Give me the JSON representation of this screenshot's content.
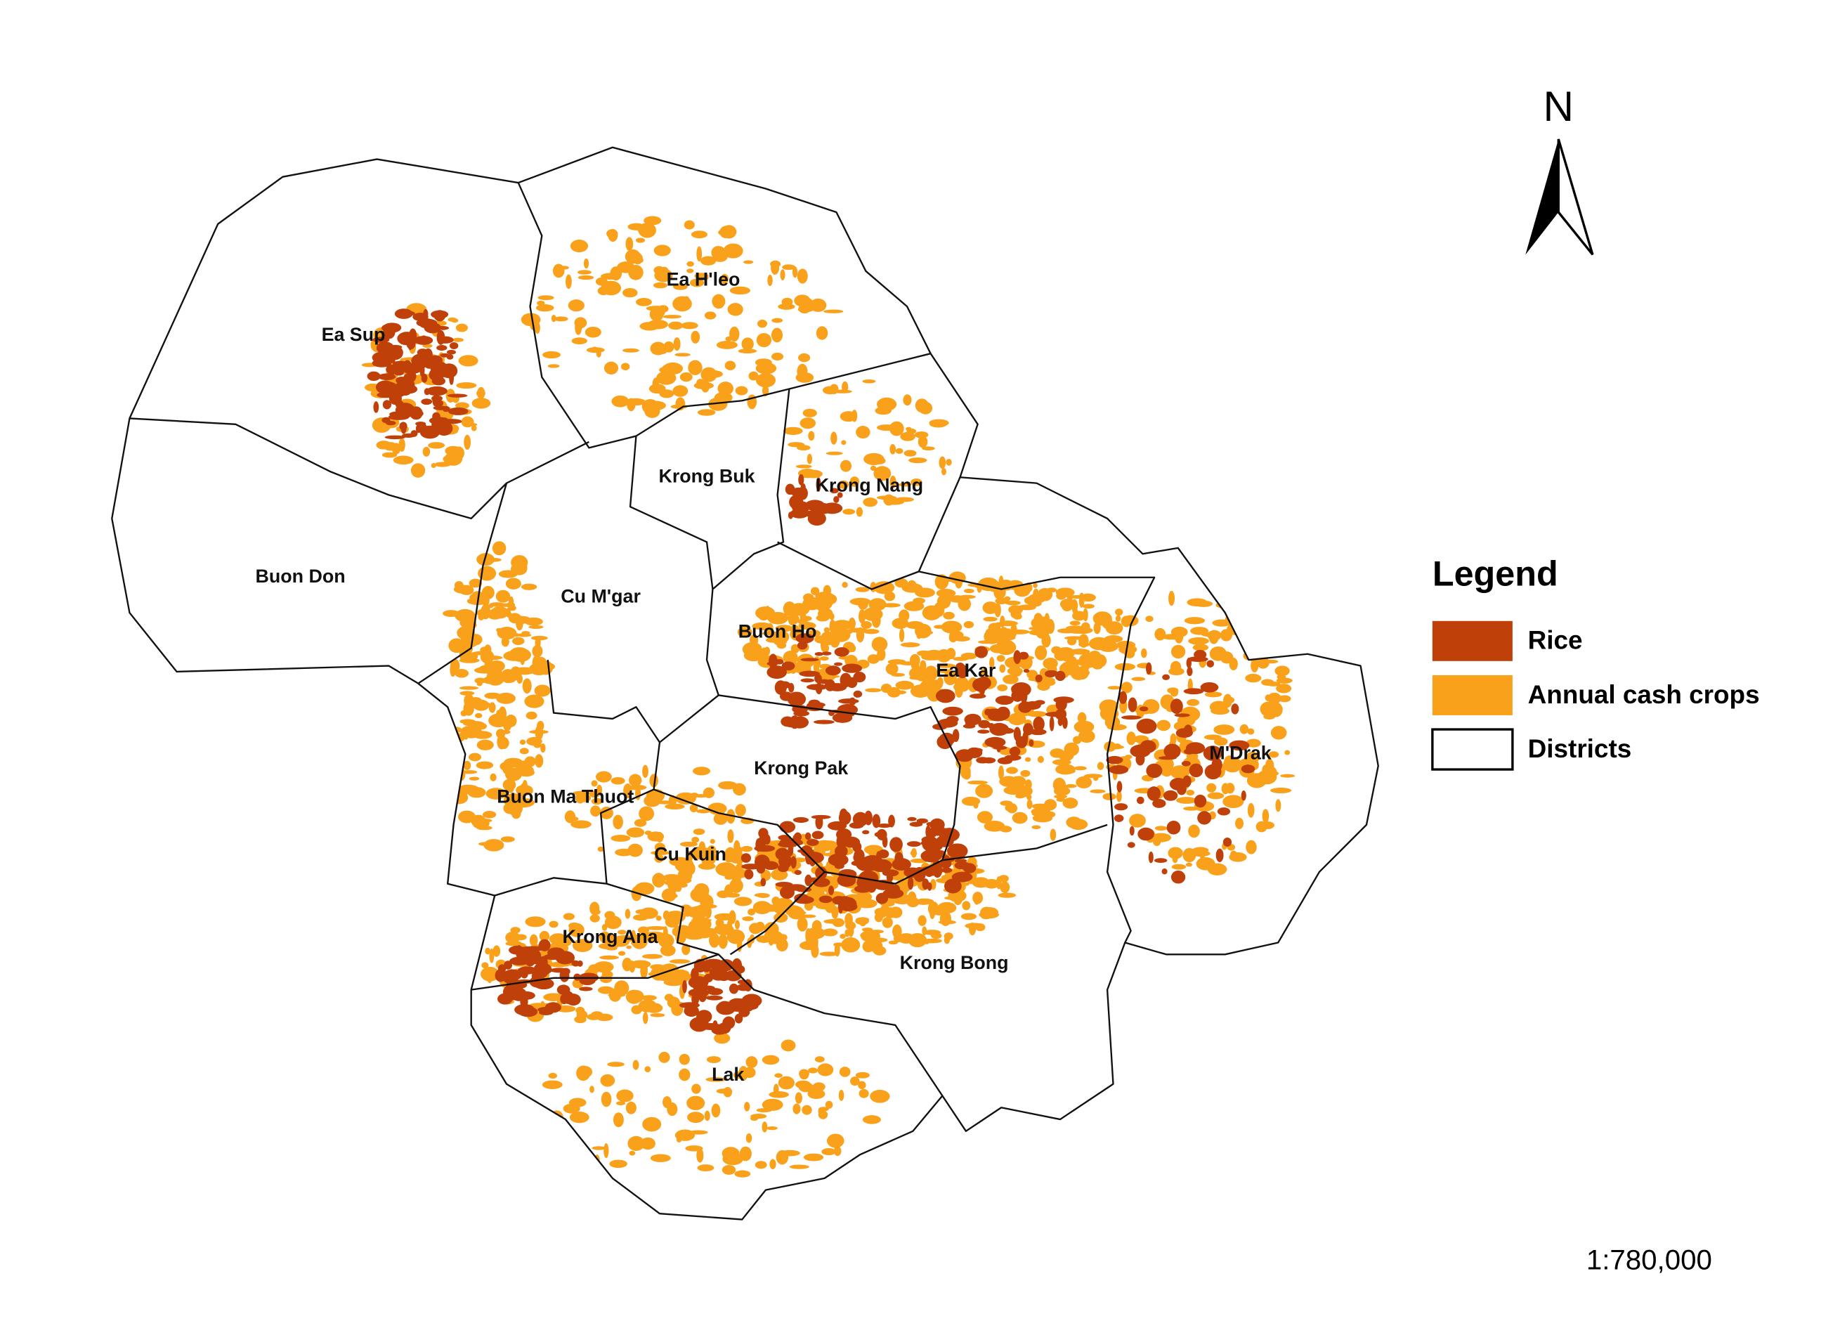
{
  "map": {
    "districts": [
      {
        "name": "Ea Sup"
      },
      {
        "name": "Ea H'leo"
      },
      {
        "name": "Krong Buk"
      },
      {
        "name": "Krong Nang"
      },
      {
        "name": "Buon Don"
      },
      {
        "name": "Cu M'gar"
      },
      {
        "name": "Buon Ho"
      },
      {
        "name": "Ea Kar"
      },
      {
        "name": "M'Drak"
      },
      {
        "name": "Krong Pak"
      },
      {
        "name": "Buon Ma Thuot"
      },
      {
        "name": "Cu Kuin"
      },
      {
        "name": "Krong Ana"
      },
      {
        "name": "Krong Bong"
      },
      {
        "name": "Lak"
      }
    ],
    "legend": {
      "title": "Legend",
      "items": [
        {
          "label": "Rice",
          "color": "#c0400a"
        },
        {
          "label": "Annual cash crops",
          "color": "#f9a11b"
        },
        {
          "label": "Districts",
          "color": "#ffffff"
        }
      ]
    },
    "north": "N",
    "scale": "1:780,000"
  }
}
